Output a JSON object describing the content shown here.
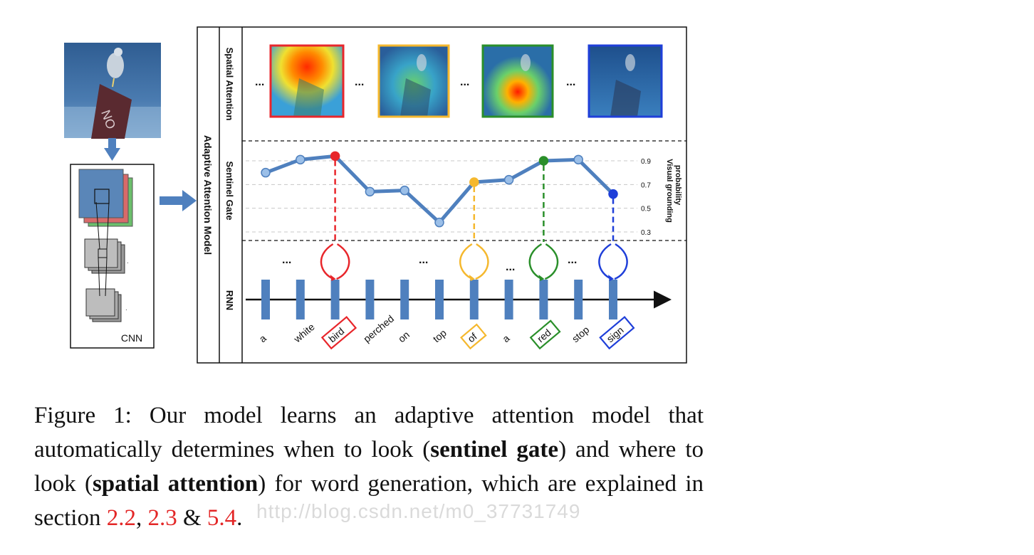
{
  "panel": {
    "title": "Adaptive Attention Model",
    "row_labels": {
      "spatial": "Spatial Attention",
      "sentinel": "Sentinel Gate",
      "rnn": "RNN"
    },
    "cnn_label": "CNN",
    "ellipsis": "...",
    "right_axis_label_1": "Visual  grounding",
    "right_axis_label_2": "probability",
    "right_ticks": [
      "0.9",
      "0.7",
      "0.5",
      "0.3"
    ]
  },
  "words": [
    {
      "text": "a",
      "boxed": false,
      "color": ""
    },
    {
      "text": "white",
      "boxed": false,
      "color": ""
    },
    {
      "text": "bird",
      "boxed": true,
      "color": "#e8262b"
    },
    {
      "text": "perched",
      "boxed": false,
      "color": ""
    },
    {
      "text": "on",
      "boxed": false,
      "color": ""
    },
    {
      "text": "top",
      "boxed": false,
      "color": ""
    },
    {
      "text": "of",
      "boxed": true,
      "color": "#f5b82e"
    },
    {
      "text": "a",
      "boxed": false,
      "color": ""
    },
    {
      "text": "red",
      "boxed": true,
      "color": "#2a8f2a"
    },
    {
      "text": "stop",
      "boxed": false,
      "color": ""
    },
    {
      "text": "sign",
      "boxed": true,
      "color": "#1f3fd9"
    }
  ],
  "gate_values": [
    0.8,
    0.91,
    0.94,
    0.64,
    0.65,
    0.38,
    0.72,
    0.74,
    0.9,
    0.91,
    0.62
  ],
  "attention_frames": [
    {
      "word": "bird",
      "color": "#e8262b"
    },
    {
      "word": "of",
      "color": "#f5b82e"
    },
    {
      "word": "red",
      "color": "#2a8f2a"
    },
    {
      "word": "sign",
      "color": "#1f3fd9"
    }
  ],
  "caption": {
    "part1": "Figure 1:  Our model learns an adaptive attention model that automatically determines when to look (",
    "bold1": "sentinel gate",
    "part2": ") and where to look (",
    "bold2": "spatial attention",
    "part3": ") for word generation, which are explained in section ",
    "ref1": "2.2",
    "sep1": ", ",
    "ref2": "2.3",
    "sep2": " & ",
    "ref3": "5.4",
    "end": "."
  },
  "watermark": "http://blog.csdn.net/m0_37731749"
}
